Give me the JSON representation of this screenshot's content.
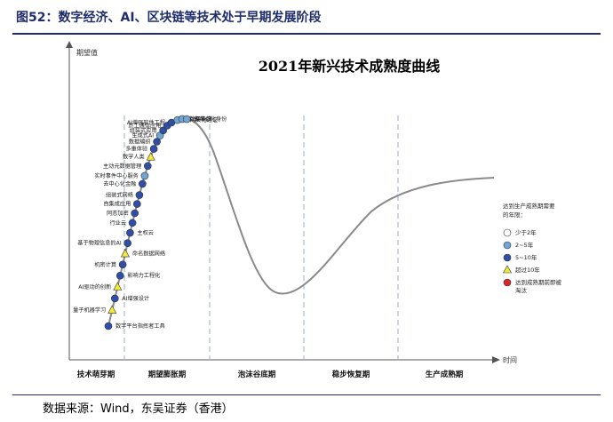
{
  "figure": {
    "title": "图52：数字经济、AI、区块链等技术处于早期发展阶段",
    "source": "数据来源：Wind，东吴证券（香港）"
  },
  "chart_data": {
    "type": "hype-cycle",
    "title": "2021年新兴技术成熟度曲线",
    "ylabel": "期望值",
    "xlabel": "时间",
    "phases": [
      "技术萌芽期",
      "期望膨胀期",
      "泡沫谷底期",
      "稳步恢复期",
      "生产成熟期"
    ],
    "legend": {
      "title": "达到生产成熟期需要的年限：",
      "items": [
        {
          "key": "lt2",
          "label": "少于2年",
          "color": "#ffffff"
        },
        {
          "key": "y2_5",
          "label": "2~5年",
          "color": "#6fa6d3"
        },
        {
          "key": "y5_10",
          "label": "5~10年",
          "color": "#2f4ea8"
        },
        {
          "key": "gt10",
          "label": "超过10年",
          "color": "#f3e93a"
        },
        {
          "key": "obsolete",
          "label": "达到成熟期前即被淘汰",
          "color": "#d62828"
        }
      ]
    },
    "technologies": [
      {
        "name": "数字平台指挥者工具",
        "category": "y5_10",
        "position": 0.0
      },
      {
        "name": "量子机器学习",
        "category": "gt10",
        "position": 0.04
      },
      {
        "name": "AI增强设计",
        "category": "y5_10",
        "position": 0.07
      },
      {
        "name": "AI驱动的创新",
        "category": "gt10",
        "position": 0.1
      },
      {
        "name": "影响力工程化",
        "category": "y5_10",
        "position": 0.13
      },
      {
        "name": "机密计算",
        "category": "y5_10",
        "position": 0.16
      },
      {
        "name": "命名数据网络",
        "category": "gt10",
        "position": 0.19
      },
      {
        "name": "基于物理信息的AI",
        "category": "y5_10",
        "position": 0.22
      },
      {
        "name": "主权云",
        "category": "y5_10",
        "position": 0.25
      },
      {
        "name": "行业云",
        "category": "y5_10",
        "position": 0.28
      },
      {
        "name": "同态加密",
        "category": "y5_10",
        "position": 0.31
      },
      {
        "name": "自集成应用",
        "category": "y5_10",
        "position": 0.34
      },
      {
        "name": "组装式网络",
        "category": "y5_10",
        "position": 0.37
      },
      {
        "name": "去中心化金融",
        "category": "y5_10",
        "position": 0.41
      },
      {
        "name": "实时事件中心服务",
        "category": "y2_5",
        "position": 0.44
      },
      {
        "name": "主动元数据管理",
        "category": "y5_10",
        "position": 0.48
      },
      {
        "name": "数字人类",
        "category": "gt10",
        "position": 0.52
      },
      {
        "name": "多重体验",
        "category": "y5_10",
        "position": 0.56
      },
      {
        "name": "数据编织",
        "category": "y5_10",
        "position": 0.6
      },
      {
        "name": "生成式AI",
        "category": "y2_5",
        "position": 0.64
      },
      {
        "name": "组装式应用",
        "category": "y5_10",
        "position": 0.68
      },
      {
        "name": "员工通信应用",
        "category": "y5_10",
        "position": 0.73
      },
      {
        "name": "AI增强软件工程",
        "category": "y5_10",
        "position": 0.78
      },
      {
        "name": "非同质化通证",
        "category": "y2_5",
        "position": 0.84
      },
      {
        "name": "数据编织",
        "category": "y2_5",
        "position": 0.89
      },
      {
        "name": "去中心化身份",
        "category": "y2_5",
        "position": 0.94
      }
    ]
  }
}
